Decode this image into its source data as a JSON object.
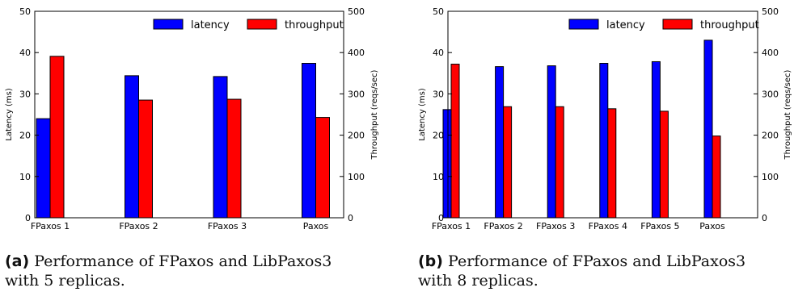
{
  "chart_data": [
    {
      "type": "bar",
      "categories": [
        "FPaxos 1",
        "FPaxos 2",
        "FPaxos 3",
        "Paxos"
      ],
      "series": [
        {
          "name": "latency",
          "axis": "left",
          "color": "#0000ff",
          "values": [
            24.0,
            34.4,
            34.2,
            37.4
          ]
        },
        {
          "name": "throughput",
          "axis": "right",
          "color": "#ff0000",
          "values": [
            391,
            285,
            287,
            243
          ]
        }
      ],
      "ylabel": "Latency (ms)",
      "ylim": [
        0,
        50
      ],
      "yticks": [
        "0",
        "10",
        "20",
        "30",
        "40",
        "50"
      ],
      "y2label": "Throughput (reqs/sec)",
      "y2lim": [
        0,
        500
      ],
      "y2ticks": [
        "0",
        "100",
        "200",
        "300",
        "400",
        "500"
      ],
      "legend": "top-right",
      "grid": false
    },
    {
      "type": "bar",
      "categories": [
        "FPaxos 1",
        "FPaxos 2",
        "FPaxos 3",
        "FPaxos 4",
        "FPaxos 5",
        "Paxos"
      ],
      "series": [
        {
          "name": "latency",
          "axis": "left",
          "color": "#0000ff",
          "values": [
            26.2,
            36.6,
            36.8,
            37.4,
            37.8,
            43.0
          ]
        },
        {
          "name": "throughput",
          "axis": "right",
          "color": "#ff0000",
          "values": [
            372,
            269,
            269,
            264,
            258,
            198
          ]
        }
      ],
      "ylabel": "Latency (ms)",
      "ylim": [
        0,
        50
      ],
      "yticks": [
        "0",
        "10",
        "20",
        "30",
        "40",
        "50"
      ],
      "y2label": "Throughput (reqs/sec)",
      "y2lim": [
        0,
        500
      ],
      "y2ticks": [
        "0",
        "100",
        "200",
        "300",
        "400",
        "500"
      ],
      "legend": "top-right",
      "grid": false
    }
  ],
  "captions": [
    {
      "label": "(a)",
      "line1": "Performance of FPaxos and LibPaxos3",
      "line2": "with 5 replicas."
    },
    {
      "label": "(b)",
      "line1": "Performance of FPaxos and LibPaxos3",
      "line2": "with 8 replicas."
    }
  ]
}
